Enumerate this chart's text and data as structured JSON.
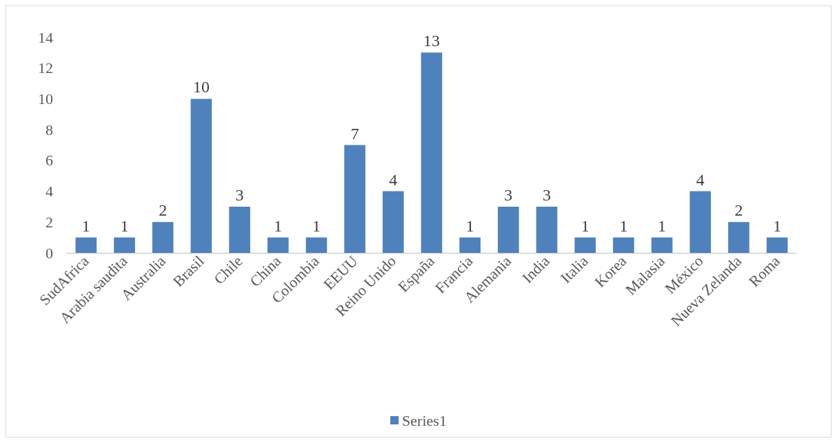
{
  "chart_data": {
    "type": "bar",
    "categories": [
      "SudAfrica",
      "Arabia saudita",
      "Australia",
      "Brasil",
      "Chile",
      "China",
      "Colombia",
      "EEUU",
      "Reino Unido",
      "España",
      "Francia",
      "Alemania",
      "India",
      "Italia",
      "Korea",
      "Malasia",
      "México",
      "Nueva Zelanda",
      "Roma"
    ],
    "series": [
      {
        "name": "Series1",
        "color": "#4f81bd",
        "values": [
          1,
          1,
          2,
          10,
          3,
          1,
          1,
          7,
          4,
          13,
          1,
          3,
          3,
          1,
          1,
          1,
          4,
          2,
          1
        ]
      }
    ],
    "ylim": [
      0,
      14
    ],
    "yticks": [
      0,
      2,
      4,
      6,
      8,
      10,
      12,
      14
    ],
    "grid": false,
    "legend": "bottom",
    "data_labels": true
  }
}
